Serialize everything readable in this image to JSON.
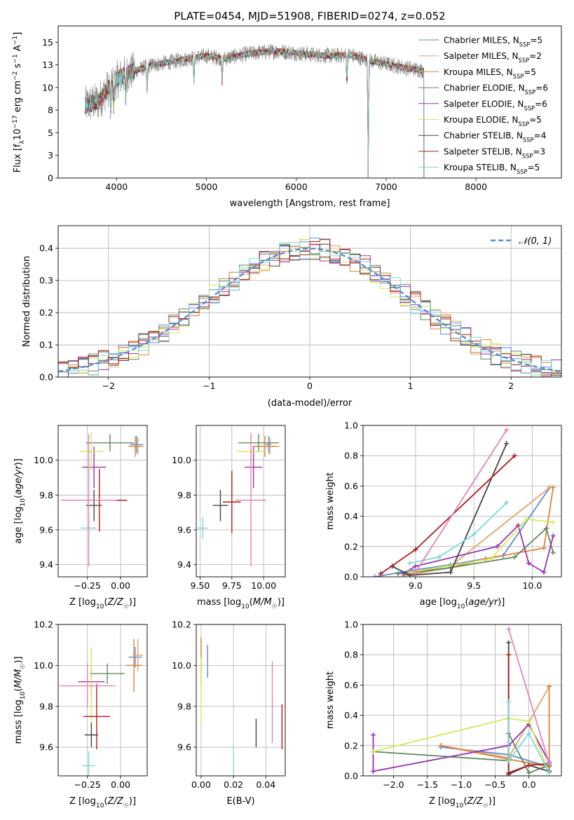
{
  "palette": [
    "#5b8bd6",
    "#e2a46c",
    "#dd8439",
    "#5d8a5d",
    "#9a32b0",
    "#d4e85a",
    "#444444",
    "#b01c1c",
    "#7dd8dc",
    "#e385b8"
  ],
  "chart_data": [
    {
      "id": "spectrum",
      "type": "line",
      "title": "PLATE=0454, MJD=51908, FIBERID=0274, z=0.052",
      "xlabel": "wavelength [Angstrom, rest frame]",
      "ylabel": "Flux [f_λ 10^-17 erg cm^-2 s^-1 A^-1]",
      "xlim": [
        3350,
        8950
      ],
      "ylim": [
        0,
        16.8
      ],
      "xticks": [
        4000,
        5000,
        6000,
        7000,
        8000
      ],
      "yticks": [
        0.0,
        2.5,
        5.0,
        7.5,
        10.0,
        12.5,
        15.0
      ],
      "data_range": [
        3650,
        7420
      ],
      "continuum": {
        "x": [
          3650,
          3800,
          3950,
          4100,
          4250,
          4400,
          4600,
          4800,
          5000,
          5200,
          5400,
          5600,
          5800,
          6000,
          6200,
          6400,
          6600,
          6800,
          7000,
          7200,
          7400
        ],
        "y": [
          8.0,
          8.5,
          10.5,
          11.5,
          12.0,
          12.5,
          12.8,
          13.2,
          13.5,
          13.2,
          13.6,
          13.9,
          14.0,
          13.8,
          13.6,
          13.5,
          13.6,
          13.0,
          12.6,
          12.2,
          11.9
        ]
      },
      "dips": [
        [
          3934,
          3
        ],
        [
          3969,
          2.5
        ],
        [
          4101,
          3
        ],
        [
          4340,
          2.5
        ],
        [
          4861,
          2.5
        ],
        [
          5175,
          2.5
        ],
        [
          6563,
          3
        ],
        [
          6800,
          12
        ]
      ],
      "legend_position": "upper right",
      "legend": [
        {
          "label": "Chabrier MILES, N_SSP=5",
          "color_index": 0
        },
        {
          "label": "Salpeter MILES, N_SSP=2",
          "color_index": 1
        },
        {
          "label": "Kroupa MILES, N_SSP=5",
          "color_index": 2
        },
        {
          "label": "Chabrier ELODIE, N_SSP=6",
          "color_index": 3
        },
        {
          "label": "Salpeter ELODIE, N_SSP=6",
          "color_index": 4
        },
        {
          "label": "Kroupa ELODIE, N_SSP=5",
          "color_index": 5
        },
        {
          "label": "Chabrier STELIB, N_SSP=4",
          "color_index": 6
        },
        {
          "label": "Salpeter STELIB, N_SSP=3",
          "color_index": 7
        },
        {
          "label": "Kroupa STELIB, N_SSP=5",
          "color_index": 8
        }
      ]
    },
    {
      "id": "residuals",
      "type": "line",
      "xlabel": "(data-model)/error",
      "ylabel": "Normed distribution",
      "xlim": [
        -2.5,
        2.5
      ],
      "ylim": [
        0,
        0.47
      ],
      "xticks": [
        -2,
        -1,
        0,
        1,
        2
      ],
      "yticks": [
        0.0,
        0.1,
        0.2,
        0.3,
        0.4
      ],
      "grid": true,
      "gaussian_label": "𝒩(0, 1)",
      "legend_position": "upper right",
      "n_bins": 50
    },
    {
      "id": "age-vs-Z",
      "type": "scatter",
      "xlabel": "Z [log10(Z/Z☉)]",
      "ylabel": "age [log10(age/yr)]",
      "xlim": [
        -0.47,
        0.2
      ],
      "ylim": [
        9.33,
        10.2
      ],
      "xticks": [
        -0.25,
        0.0
      ],
      "yticks": [
        9.4,
        9.6,
        9.8,
        10.0
      ],
      "grid": true,
      "points": [
        {
          "c": 0,
          "x": 0.12,
          "y": 10.09,
          "xe": 0.05,
          "ye": 0.05
        },
        {
          "c": 1,
          "x": 0.13,
          "y": 10.08,
          "xe": 0.05,
          "ye": 0.05
        },
        {
          "c": 2,
          "x": 0.11,
          "y": 10.08,
          "xe": 0.05,
          "ye": 0.06
        },
        {
          "c": 3,
          "x": -0.08,
          "y": 10.1,
          "xe": 0.18,
          "ye": 0.05
        },
        {
          "c": 4,
          "x": -0.2,
          "y": 9.96,
          "xe": 0.09,
          "ye": 0.12
        },
        {
          "c": 5,
          "x": -0.22,
          "y": 10.05,
          "xe": 0.09,
          "ye": 0.11
        },
        {
          "c": 6,
          "x": -0.2,
          "y": 9.74,
          "xe": 0.06,
          "ye": 0.09
        },
        {
          "c": 7,
          "x": -0.16,
          "y": 9.77,
          "xe": 0.21,
          "ye": 0.18
        },
        {
          "c": 8,
          "x": -0.24,
          "y": 9.61,
          "xe": 0.06,
          "ye": 0.06
        },
        {
          "c": 9,
          "x": -0.24,
          "y": 9.77,
          "xe": 0.21,
          "ye": 0.38
        }
      ]
    },
    {
      "id": "age-vs-mass",
      "type": "scatter",
      "xlabel": "mass [log10(M/M☉)]",
      "ylabel": "",
      "xlim": [
        9.47,
        10.17
      ],
      "ylim": [
        9.33,
        10.2
      ],
      "xticks": [
        9.5,
        9.75,
        10.0
      ],
      "yticks": [
        9.4,
        9.6,
        9.8,
        10.0
      ],
      "grid": true,
      "points": [
        {
          "c": 0,
          "x": 10.04,
          "y": 10.09,
          "xe": 0.02,
          "ye": 0.05
        },
        {
          "c": 1,
          "x": 10.05,
          "y": 10.08,
          "xe": 0.08,
          "ye": 0.05
        },
        {
          "c": 2,
          "x": 10.01,
          "y": 10.08,
          "xe": 0.09,
          "ye": 0.06
        },
        {
          "c": 3,
          "x": 9.96,
          "y": 10.1,
          "xe": 0.16,
          "ye": 0.05
        },
        {
          "c": 4,
          "x": 9.92,
          "y": 9.96,
          "xe": 0.07,
          "ye": 0.12
        },
        {
          "c": 5,
          "x": 9.9,
          "y": 10.05,
          "xe": 0.11,
          "ye": 0.11
        },
        {
          "c": 6,
          "x": 9.66,
          "y": 9.74,
          "xe": 0.06,
          "ye": 0.09
        },
        {
          "c": 7,
          "x": 9.75,
          "y": 9.76,
          "xe": 0.07,
          "ye": 0.18
        },
        {
          "c": 8,
          "x": 9.52,
          "y": 9.61,
          "xe": 0.04,
          "ye": 0.06
        },
        {
          "c": 9,
          "x": 9.9,
          "y": 9.77,
          "xe": 0.12,
          "ye": 0.38
        }
      ]
    },
    {
      "id": "weights-vs-age",
      "type": "line",
      "xlabel": "age  [log10(age/yr)]",
      "ylabel": "mass weight",
      "xlim": [
        8.55,
        10.25
      ],
      "ylim": [
        0,
        1.0
      ],
      "xticks": [
        9.0,
        9.5,
        10.0
      ],
      "yticks": [
        0.0,
        0.2,
        0.4,
        0.6,
        0.8,
        1.0
      ],
      "grid": true,
      "series": [
        {
          "c": 0,
          "x": [
            8.65,
            8.95,
            9.3,
            9.75,
            10.15
          ],
          "y": [
            0.0,
            0.04,
            0.08,
            0.14,
            0.59
          ]
        },
        {
          "c": 1,
          "x": [
            9.3,
            10.15
          ],
          "y": [
            0.07,
            0.59
          ]
        },
        {
          "c": 2,
          "x": [
            8.9,
            9.3,
            9.6,
            10.1,
            10.18
          ],
          "y": [
            0.01,
            0.06,
            0.12,
            0.19,
            0.59
          ]
        },
        {
          "c": 3,
          "x": [
            8.85,
            9.3,
            9.85,
            10.12,
            10.18
          ],
          "y": [
            0.02,
            0.06,
            0.13,
            0.32,
            0.16
          ]
        },
        {
          "c": 4,
          "x": [
            8.9,
            9.0,
            9.7,
            9.88,
            9.97,
            10.1,
            10.18
          ],
          "y": [
            0.02,
            0.07,
            0.2,
            0.34,
            0.09,
            0.03,
            0.27
          ]
        },
        {
          "c": 5,
          "x": [
            8.95,
            9.65,
            9.95,
            10.18
          ],
          "y": [
            0.03,
            0.12,
            0.38,
            0.36
          ]
        },
        {
          "c": 6,
          "x": [
            8.8,
            8.95,
            9.3,
            9.78
          ],
          "y": [
            0.07,
            0.01,
            0.03,
            0.88
          ]
        },
        {
          "c": 7,
          "x": [
            8.7,
            9.0,
            9.85
          ],
          "y": [
            0.02,
            0.18,
            0.8
          ]
        },
        {
          "c": 8,
          "x": [
            8.95,
            9.2,
            9.5,
            9.78
          ],
          "y": [
            0.09,
            0.13,
            0.28,
            0.49
          ]
        },
        {
          "c": 9,
          "x": [
            9.0,
            9.78
          ],
          "y": [
            0.03,
            0.97
          ]
        }
      ]
    },
    {
      "id": "mass-vs-Z",
      "type": "scatter",
      "xlabel": "Z [log10(Z/Z☉)]",
      "ylabel": "mass [log10(M/M☉)]",
      "xlim": [
        -0.47,
        0.2
      ],
      "ylim": [
        9.46,
        10.2
      ],
      "xticks": [
        -0.25,
        0.0
      ],
      "yticks": [
        9.6,
        9.8,
        10.0,
        10.2
      ],
      "grid": true,
      "points": [
        {
          "c": 0,
          "x": 0.11,
          "y": 10.04,
          "xe": 0.05,
          "ye": 0.05
        },
        {
          "c": 1,
          "x": 0.13,
          "y": 10.05,
          "xe": 0.04,
          "ye": 0.08
        },
        {
          "c": 2,
          "x": 0.1,
          "y": 10.0,
          "xe": 0.06,
          "ye": 0.13
        },
        {
          "c": 3,
          "x": -0.1,
          "y": 9.96,
          "xe": 0.13,
          "ye": 0.05
        },
        {
          "c": 4,
          "x": -0.22,
          "y": 9.92,
          "xe": 0.1,
          "ye": 0.07
        },
        {
          "c": 5,
          "x": -0.22,
          "y": 9.9,
          "xe": 0.08,
          "ye": 0.19
        },
        {
          "c": 6,
          "x": -0.22,
          "y": 9.66,
          "xe": 0.05,
          "ye": 0.06
        },
        {
          "c": 7,
          "x": -0.18,
          "y": 9.75,
          "xe": 0.1,
          "ye": 0.16
        },
        {
          "c": 8,
          "x": -0.24,
          "y": 9.51,
          "xe": 0.05,
          "ye": 0.07
        },
        {
          "c": 9,
          "x": -0.25,
          "y": 9.9,
          "xe": 0.21,
          "ye": 0.11
        }
      ]
    },
    {
      "id": "mass-vs-EBV",
      "type": "scatter",
      "xlabel": "E(B-V)",
      "ylabel": "",
      "xlim": [
        -0.003,
        0.052
      ],
      "ylim": [
        9.46,
        10.2
      ],
      "xticks": [
        0.0,
        0.02,
        0.04
      ],
      "yticks": [
        9.6,
        9.8,
        10.0,
        10.2
      ],
      "grid": true,
      "points": [
        {
          "c": 0,
          "x": 0.004,
          "y": 10.02,
          "ye": 0.08
        },
        {
          "c": 1,
          "x": 0.0,
          "y": 10.05,
          "ye": 0.08
        },
        {
          "c": 2,
          "x": 0.0,
          "y": 10.02,
          "ye": 0.12
        },
        {
          "c": 5,
          "x": 0.0,
          "y": 9.88,
          "ye": 0.16
        },
        {
          "c": 6,
          "x": 0.034,
          "y": 9.67,
          "ye": 0.07
        },
        {
          "c": 7,
          "x": 0.05,
          "y": 9.7,
          "ye": 0.11
        },
        {
          "c": 8,
          "x": 0.02,
          "y": 9.53,
          "ye": 0.08
        },
        {
          "c": 9,
          "x": 0.044,
          "y": 9.82,
          "ye": 0.2
        }
      ]
    },
    {
      "id": "weights-vs-Z",
      "type": "line",
      "xlabel": "Z [log10(Z/Z☉)]",
      "ylabel": "mass weight",
      "xlim": [
        -2.45,
        0.48
      ],
      "ylim": [
        0,
        1.0
      ],
      "xticks": [
        -2.0,
        -1.5,
        -1.0,
        -0.5,
        0.0
      ],
      "yticks": [
        0.0,
        0.2,
        0.4,
        0.6,
        0.8,
        1.0
      ],
      "grid": true,
      "series": [
        {
          "c": 0,
          "x": [
            -1.3,
            -0.3,
            0.3
          ],
          "y": [
            0.19,
            0.14,
            0.06
          ]
        },
        {
          "c": 1,
          "x": [
            -1.3,
            -0.3,
            0.3
          ],
          "y": [
            0.2,
            0.12,
            0.59
          ]
        },
        {
          "c": 2,
          "x": [
            -1.3,
            -0.3,
            0.3,
            0.3
          ],
          "y": [
            0.2,
            0.11,
            0.06,
            0.59
          ]
        },
        {
          "c": 3,
          "x": [
            -2.3,
            -0.3,
            -0.3,
            0.0,
            0.3
          ],
          "y": [
            0.16,
            0.1,
            0.28,
            0.02,
            0.07
          ]
        },
        {
          "c": 4,
          "x": [
            -2.3,
            -2.3,
            -0.3,
            0.0,
            0.3
          ],
          "y": [
            0.27,
            0.03,
            0.2,
            0.34,
            0.09
          ]
        },
        {
          "c": 5,
          "x": [
            -2.3,
            -0.3,
            0.0,
            0.3
          ],
          "y": [
            0.16,
            0.38,
            0.36,
            0.02
          ]
        },
        {
          "c": 6,
          "x": [
            -0.3,
            -0.3,
            0.0,
            0.3
          ],
          "y": [
            0.88,
            0.01,
            0.07,
            0.03
          ]
        },
        {
          "c": 7,
          "x": [
            -0.3,
            -0.3,
            0.0,
            0.3
          ],
          "y": [
            0.8,
            0.02,
            0.07,
            0.08
          ]
        },
        {
          "c": 8,
          "x": [
            -0.3,
            -0.3,
            0.0,
            0.3
          ],
          "y": [
            0.49,
            0.1,
            0.28,
            0.02
          ]
        },
        {
          "c": 9,
          "x": [
            -0.3,
            0.3
          ],
          "y": [
            0.97,
            0.08
          ]
        }
      ]
    }
  ]
}
